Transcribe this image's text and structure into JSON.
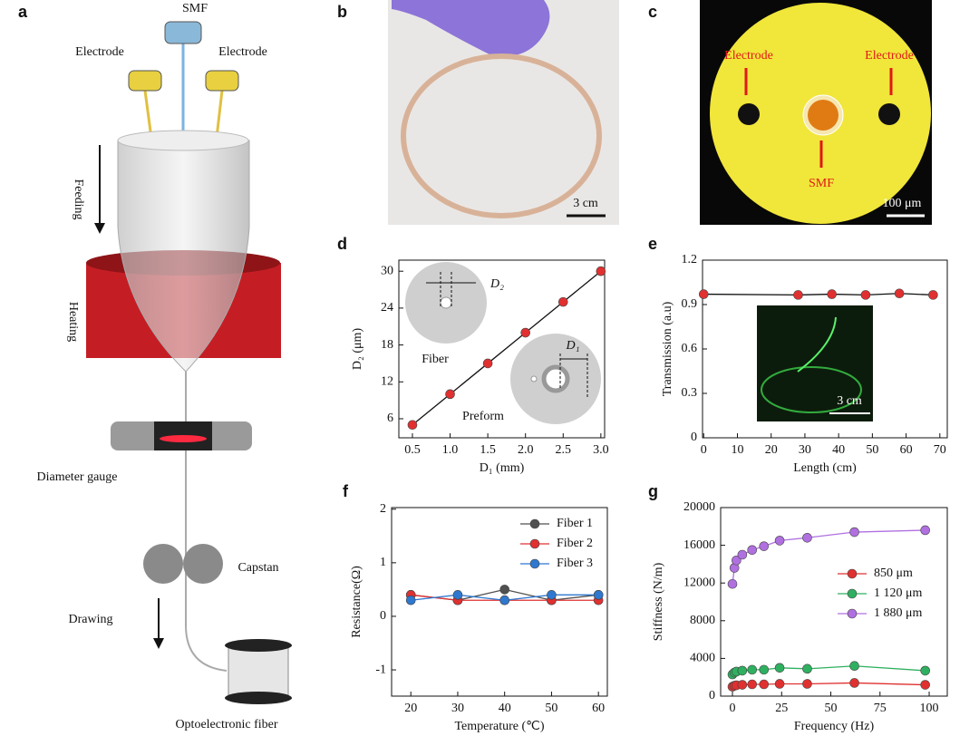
{
  "figure": {
    "panel_labels": [
      "a",
      "b",
      "c"
    ],
    "a": {
      "smf": "SMF",
      "electrode_left": "Electrode",
      "electrode_right": "Electrode",
      "feeding": "Feeding",
      "heating": "Heating",
      "gauge": "Diameter gauge",
      "capstan": "Capstan",
      "drawing": "Drawing",
      "fiber": "Optoelectronic fiber"
    },
    "b": {
      "scale": "3 cm"
    },
    "c": {
      "electrode_left": "Electrode",
      "electrode_right": "Electrode",
      "smf": "SMF",
      "scale": "100 μm"
    }
  },
  "chart_data": [
    {
      "panel": "d",
      "type": "line",
      "x": [
        0.5,
        1,
        1.5,
        2,
        2.5,
        3
      ],
      "series": [
        {
          "color": "#e03030",
          "values": [
            5,
            10,
            15,
            20,
            25,
            30
          ]
        }
      ],
      "xlabel": "D₁ (mm)",
      "ylabel": "D₂ (μm)",
      "xlim": [
        0.32,
        3.05
      ],
      "ylim": [
        2.9,
        31.8
      ],
      "xticks": [
        0.5,
        {
          "value": 1,
          "label": "1.0"
        },
        1.5,
        {
          "value": 2,
          "label": "2.0"
        },
        2.5,
        {
          "value": 3,
          "label": "3.0"
        }
      ],
      "yticks": [
        6,
        12,
        18,
        24,
        30
      ],
      "annotations": [
        "D₂",
        "Fiber",
        "D₁",
        "Preform"
      ]
    },
    {
      "panel": "e",
      "type": "line",
      "x": [
        0,
        28,
        38,
        48,
        58,
        68
      ],
      "series": [
        {
          "color": "#e03030",
          "values": [
            0.97,
            0.965,
            0.97,
            0.965,
            0.975,
            0.965
          ]
        }
      ],
      "xlabel": "Length (cm)",
      "ylabel": "Transmission (a.u)",
      "xlim": [
        -0.34,
        72.2
      ],
      "ylim": [
        0,
        1.2
      ],
      "xticks": [
        0,
        10,
        20,
        30,
        40,
        50,
        60,
        70
      ],
      "yticks": [
        0,
        0.3,
        0.6,
        0.9,
        1.2
      ],
      "annotations": [
        "3 cm"
      ]
    },
    {
      "panel": "f",
      "type": "line",
      "x": [
        20,
        30,
        40,
        50,
        60
      ],
      "series": [
        {
          "name": "Fiber 1",
          "color": "#505050",
          "values": [
            0.4,
            0.3,
            0.5,
            0.3,
            0.4
          ]
        },
        {
          "name": "Fiber 2",
          "color": "#e03030",
          "values": [
            0.4,
            0.3,
            0.3,
            0.3,
            0.3
          ]
        },
        {
          "name": "Fiber 3",
          "color": "#2f78d0",
          "values": [
            0.3,
            0.4,
            0.3,
            0.4,
            0.4
          ]
        }
      ],
      "xlabel": "Temperature (℃)",
      "ylabel": "Resistance(Ω)",
      "xlim": [
        15.9,
        61.9
      ],
      "ylim": [
        -1.49,
        2.03
      ],
      "xticks": [
        20,
        30,
        40,
        50,
        60
      ],
      "yticks": [
        -1,
        0,
        1,
        2
      ]
    },
    {
      "panel": "g",
      "type": "line",
      "x": [
        0,
        1,
        2,
        5,
        10,
        16,
        24,
        38,
        62,
        98
      ],
      "series": [
        {
          "name": "850 μm",
          "color": "#e03030",
          "values": [
            1000,
            1100,
            1150,
            1200,
            1250,
            1250,
            1300,
            1300,
            1400,
            1200
          ]
        },
        {
          "name": "1 120 μm",
          "color": "#2fb060",
          "values": [
            2300,
            2500,
            2600,
            2700,
            2800,
            2800,
            3000,
            2900,
            3200,
            2700
          ]
        },
        {
          "name": "1 880 μm",
          "color": "#b070e0",
          "values": [
            11900,
            13600,
            14400,
            15000,
            15500,
            15900,
            16500,
            16800,
            17400,
            17600
          ]
        }
      ],
      "xlabel": "Frequency (Hz)",
      "ylabel": "Stiffness (N/m)",
      "xlim": [
        -6,
        109.2
      ],
      "ylim": [
        0,
        20000
      ],
      "xticks": [
        0,
        25,
        50,
        75,
        100
      ],
      "yticks": [
        0,
        4000,
        8000,
        12000,
        16000,
        20000
      ]
    }
  ]
}
